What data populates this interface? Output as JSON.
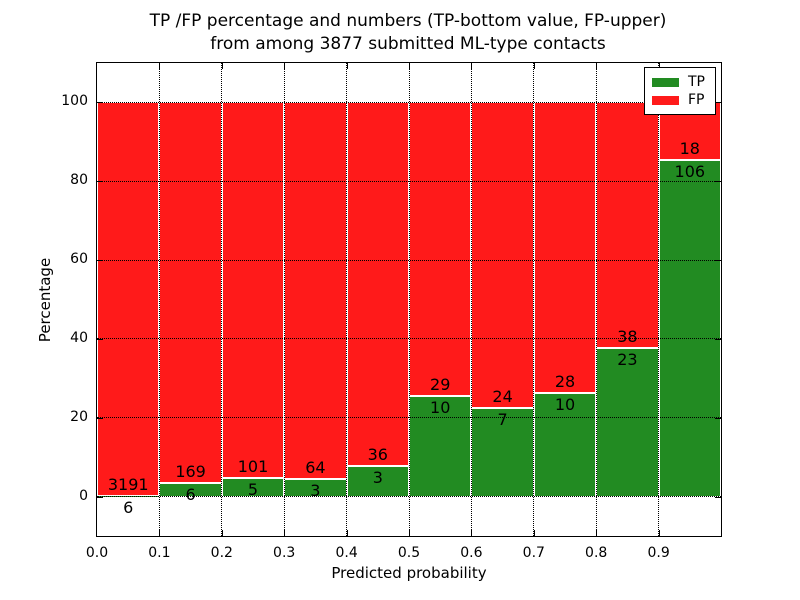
{
  "figure": {
    "title_line1": "TP /FP percentage and numbers (TP-bottom value, FP-upper)",
    "title_line2": "from among 3877 submitted ML-type contacts"
  },
  "chart_data": {
    "type": "bar",
    "stacked": true,
    "orientation": "vertical",
    "title": "TP /FP percentage and numbers (TP-bottom value, FP-upper) from among 3877 submitted ML-type contacts",
    "xlabel": "Predicted probability",
    "ylabel": "Percentage",
    "xlim": [
      0.0,
      1.0
    ],
    "ylim": [
      -10,
      110
    ],
    "bar_width": 0.1,
    "x_tick_labels": [
      "0.0",
      "0.1",
      "0.2",
      "0.3",
      "0.4",
      "0.5",
      "0.6",
      "0.7",
      "0.8",
      "0.9"
    ],
    "y_ticks": [
      0,
      20,
      40,
      60,
      80,
      100
    ],
    "grid": "dotted black, drawn above bars",
    "total_contacts": 3877,
    "bin_edges": [
      0.0,
      0.1,
      0.2,
      0.3,
      0.4,
      0.5,
      0.6,
      0.7,
      0.8,
      0.9,
      1.0
    ],
    "series": [
      {
        "name": "TP",
        "color": "#228b22",
        "counts": [
          6,
          6,
          5,
          3,
          3,
          10,
          7,
          10,
          23,
          106
        ]
      },
      {
        "name": "FP",
        "color": "#ff1a1a",
        "counts": [
          3191,
          169,
          101,
          64,
          36,
          29,
          24,
          28,
          38,
          18
        ]
      }
    ],
    "tp_percent": [
      0.19,
      3.43,
      4.72,
      4.48,
      7.69,
      25.64,
      22.58,
      26.32,
      37.7,
      85.48
    ],
    "legend": {
      "position": "upper right",
      "entries": [
        "TP",
        "FP"
      ]
    }
  },
  "colors": {
    "tp_green": "#228b22",
    "fp_red": "#ff1a1a",
    "background": "#ffffff",
    "text": "#000000"
  }
}
